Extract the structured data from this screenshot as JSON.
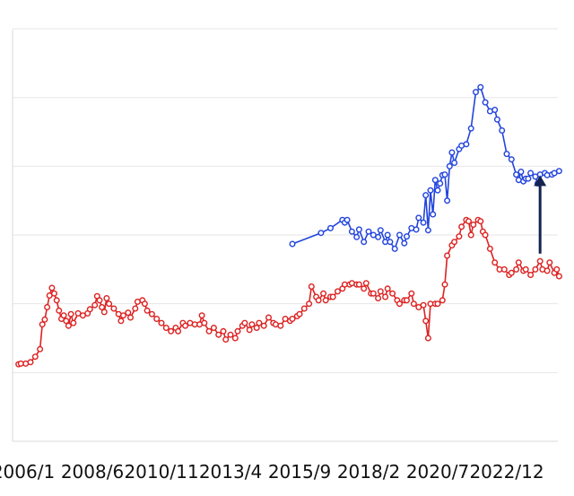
{
  "chart_data": {
    "type": "line",
    "title": "",
    "xlabel": "",
    "ylabel": "",
    "x_tick_labels": [
      "2006/1",
      "2008/6",
      "2010/11",
      "2013/4",
      "2015/9",
      "2018/2",
      "2020/7",
      "2022/12"
    ],
    "x_range": [
      "2005-11",
      "2024-10"
    ],
    "ylim": [
      0,
      600
    ],
    "y_gridlines": [
      100,
      200,
      300,
      400,
      500,
      600
    ],
    "y_tick_labels_visible": false,
    "legend": "none",
    "grid": true,
    "colors": {
      "grid": "#e6e6e6",
      "frame": "#d9d9d9",
      "series_a": "#dd2222",
      "series_b": "#2244dd",
      "arrow": "#14234f"
    },
    "annotations": [
      {
        "type": "arrow",
        "x": "2024-02",
        "y_from": 273,
        "y_to": 387,
        "direction": "up"
      }
    ],
    "series": [
      {
        "color": "#dd2222",
        "marker": "open-circle",
        "points": [
          [
            "2005-11",
            112
          ],
          [
            "2005-12",
            113
          ],
          [
            "2006-02",
            113
          ],
          [
            "2006-04",
            115
          ],
          [
            "2006-06",
            123
          ],
          [
            "2006-08",
            134
          ],
          [
            "2006-09",
            170
          ],
          [
            "2006-10",
            177
          ],
          [
            "2006-11",
            195
          ],
          [
            "2006-12",
            212
          ],
          [
            "2007-01",
            223
          ],
          [
            "2007-02",
            215
          ],
          [
            "2007-03",
            205
          ],
          [
            "2007-04",
            190
          ],
          [
            "2007-05",
            178
          ],
          [
            "2007-06",
            183
          ],
          [
            "2007-07",
            175
          ],
          [
            "2007-08",
            168
          ],
          [
            "2007-09",
            185
          ],
          [
            "2007-10",
            172
          ],
          [
            "2007-12",
            186
          ],
          [
            "2008-02",
            183
          ],
          [
            "2008-04",
            186
          ],
          [
            "2008-05",
            192
          ],
          [
            "2008-07",
            198
          ],
          [
            "2008-08",
            211
          ],
          [
            "2008-09",
            205
          ],
          [
            "2008-10",
            195
          ],
          [
            "2008-11",
            188
          ],
          [
            "2008-12",
            208
          ],
          [
            "2009-01",
            200
          ],
          [
            "2009-03",
            193
          ],
          [
            "2009-05",
            185
          ],
          [
            "2009-06",
            175
          ],
          [
            "2009-07",
            183
          ],
          [
            "2009-09",
            187
          ],
          [
            "2009-10",
            180
          ],
          [
            "2009-12",
            193
          ],
          [
            "2010-01",
            203
          ],
          [
            "2010-03",
            205
          ],
          [
            "2010-04",
            200
          ],
          [
            "2010-05",
            190
          ],
          [
            "2010-07",
            185
          ],
          [
            "2010-09",
            178
          ],
          [
            "2010-11",
            172
          ],
          [
            "2011-01",
            165
          ],
          [
            "2011-03",
            160
          ],
          [
            "2011-05",
            165
          ],
          [
            "2011-06",
            160
          ],
          [
            "2011-08",
            172
          ],
          [
            "2011-09",
            168
          ],
          [
            "2011-11",
            172
          ],
          [
            "2012-01",
            170
          ],
          [
            "2012-03",
            170
          ],
          [
            "2012-04",
            183
          ],
          [
            "2012-05",
            172
          ],
          [
            "2012-07",
            160
          ],
          [
            "2012-09",
            165
          ],
          [
            "2012-11",
            155
          ],
          [
            "2013-01",
            160
          ],
          [
            "2013-02",
            148
          ],
          [
            "2013-04",
            155
          ],
          [
            "2013-06",
            150
          ],
          [
            "2013-07",
            160
          ],
          [
            "2013-09",
            168
          ],
          [
            "2013-10",
            172
          ],
          [
            "2013-12",
            162
          ],
          [
            "2014-01",
            170
          ],
          [
            "2014-03",
            165
          ],
          [
            "2014-04",
            172
          ],
          [
            "2014-06",
            168
          ],
          [
            "2014-08",
            180
          ],
          [
            "2014-10",
            172
          ],
          [
            "2014-11",
            170
          ],
          [
            "2015-01",
            168
          ],
          [
            "2015-03",
            178
          ],
          [
            "2015-05",
            175
          ],
          [
            "2015-06",
            178
          ],
          [
            "2015-08",
            182
          ],
          [
            "2015-09",
            185
          ],
          [
            "2015-11",
            193
          ],
          [
            "2016-01",
            200
          ],
          [
            "2016-02",
            225
          ],
          [
            "2016-04",
            210
          ],
          [
            "2016-05",
            205
          ],
          [
            "2016-07",
            215
          ],
          [
            "2016-08",
            205
          ],
          [
            "2016-10",
            210
          ],
          [
            "2016-11",
            210
          ],
          [
            "2017-01",
            218
          ],
          [
            "2017-03",
            222
          ],
          [
            "2017-04",
            228
          ],
          [
            "2017-06",
            228
          ],
          [
            "2017-07",
            230
          ],
          [
            "2017-09",
            228
          ],
          [
            "2017-10",
            228
          ],
          [
            "2017-12",
            222
          ],
          [
            "2018-01",
            230
          ],
          [
            "2018-03",
            215
          ],
          [
            "2018-04",
            215
          ],
          [
            "2018-06",
            208
          ],
          [
            "2018-07",
            218
          ],
          [
            "2018-09",
            210
          ],
          [
            "2018-10",
            222
          ],
          [
            "2018-12",
            215
          ],
          [
            "2019-02",
            205
          ],
          [
            "2019-03",
            200
          ],
          [
            "2019-05",
            205
          ],
          [
            "2019-06",
            205
          ],
          [
            "2019-08",
            215
          ],
          [
            "2019-09",
            200
          ],
          [
            "2019-11",
            195
          ],
          [
            "2020-01",
            198
          ],
          [
            "2020-02",
            175
          ],
          [
            "2020-03",
            150
          ],
          [
            "2020-04",
            200
          ],
          [
            "2020-06",
            200
          ],
          [
            "2020-07",
            200
          ],
          [
            "2020-09",
            205
          ],
          [
            "2020-10",
            228
          ],
          [
            "2020-11",
            270
          ],
          [
            "2021-01",
            285
          ],
          [
            "2021-02",
            290
          ],
          [
            "2021-04",
            298
          ],
          [
            "2021-05",
            312
          ],
          [
            "2021-07",
            322
          ],
          [
            "2021-08",
            320
          ],
          [
            "2021-09",
            300
          ],
          [
            "2021-10",
            315
          ],
          [
            "2021-12",
            322
          ],
          [
            "2022-01",
            320
          ],
          [
            "2022-02",
            305
          ],
          [
            "2022-03",
            300
          ],
          [
            "2022-05",
            280
          ],
          [
            "2022-07",
            260
          ],
          [
            "2022-09",
            250
          ],
          [
            "2022-11",
            250
          ],
          [
            "2023-01",
            242
          ],
          [
            "2023-02",
            245
          ],
          [
            "2023-04",
            250
          ],
          [
            "2023-05",
            260
          ],
          [
            "2023-07",
            248
          ],
          [
            "2023-08",
            250
          ],
          [
            "2023-10",
            242
          ],
          [
            "2023-12",
            250
          ],
          [
            "2024-02",
            262
          ],
          [
            "2024-03",
            250
          ],
          [
            "2024-05",
            248
          ],
          [
            "2024-06",
            260
          ],
          [
            "2024-08",
            245
          ],
          [
            "2024-09",
            250
          ],
          [
            "2024-10",
            240
          ]
        ]
      },
      {
        "color": "#2244dd",
        "marker": "open-circle",
        "points": [
          [
            "2015-06",
            287
          ],
          [
            "2016-06",
            303
          ],
          [
            "2016-10",
            310
          ],
          [
            "2017-03",
            322
          ],
          [
            "2017-04",
            318
          ],
          [
            "2017-05",
            322
          ],
          [
            "2017-07",
            305
          ],
          [
            "2017-09",
            297
          ],
          [
            "2017-10",
            308
          ],
          [
            "2017-12",
            290
          ],
          [
            "2018-02",
            305
          ],
          [
            "2018-04",
            300
          ],
          [
            "2018-06",
            297
          ],
          [
            "2018-07",
            307
          ],
          [
            "2018-09",
            290
          ],
          [
            "2018-10",
            300
          ],
          [
            "2018-11",
            290
          ],
          [
            "2019-01",
            280
          ],
          [
            "2019-03",
            300
          ],
          [
            "2019-05",
            288
          ],
          [
            "2019-06",
            298
          ],
          [
            "2019-08",
            310
          ],
          [
            "2019-10",
            308
          ],
          [
            "2019-11",
            325
          ],
          [
            "2020-01",
            318
          ],
          [
            "2020-02",
            358
          ],
          [
            "2020-03",
            307
          ],
          [
            "2020-04",
            365
          ],
          [
            "2020-05",
            330
          ],
          [
            "2020-06",
            380
          ],
          [
            "2020-07",
            365
          ],
          [
            "2020-08",
            375
          ],
          [
            "2020-09",
            387
          ],
          [
            "2020-10",
            388
          ],
          [
            "2020-11",
            350
          ],
          [
            "2020-12",
            400
          ],
          [
            "2021-01",
            420
          ],
          [
            "2021-02",
            405
          ],
          [
            "2021-04",
            425
          ],
          [
            "2021-05",
            430
          ],
          [
            "2021-07",
            432
          ],
          [
            "2021-09",
            455
          ],
          [
            "2021-11",
            508
          ],
          [
            "2022-01",
            515
          ],
          [
            "2022-03",
            493
          ],
          [
            "2022-05",
            480
          ],
          [
            "2022-07",
            482
          ],
          [
            "2022-08",
            468
          ],
          [
            "2022-10",
            452
          ],
          [
            "2022-12",
            418
          ],
          [
            "2023-02",
            410
          ],
          [
            "2023-04",
            388
          ],
          [
            "2023-05",
            380
          ],
          [
            "2023-06",
            392
          ],
          [
            "2023-07",
            378
          ],
          [
            "2023-08",
            382
          ],
          [
            "2023-09",
            382
          ],
          [
            "2023-10",
            390
          ],
          [
            "2023-12",
            385
          ],
          [
            "2024-01",
            375
          ],
          [
            "2024-02",
            388
          ],
          [
            "2024-04",
            390
          ],
          [
            "2024-05",
            387
          ],
          [
            "2024-07",
            388
          ],
          [
            "2024-08",
            390
          ],
          [
            "2024-10",
            393
          ]
        ]
      }
    ]
  }
}
